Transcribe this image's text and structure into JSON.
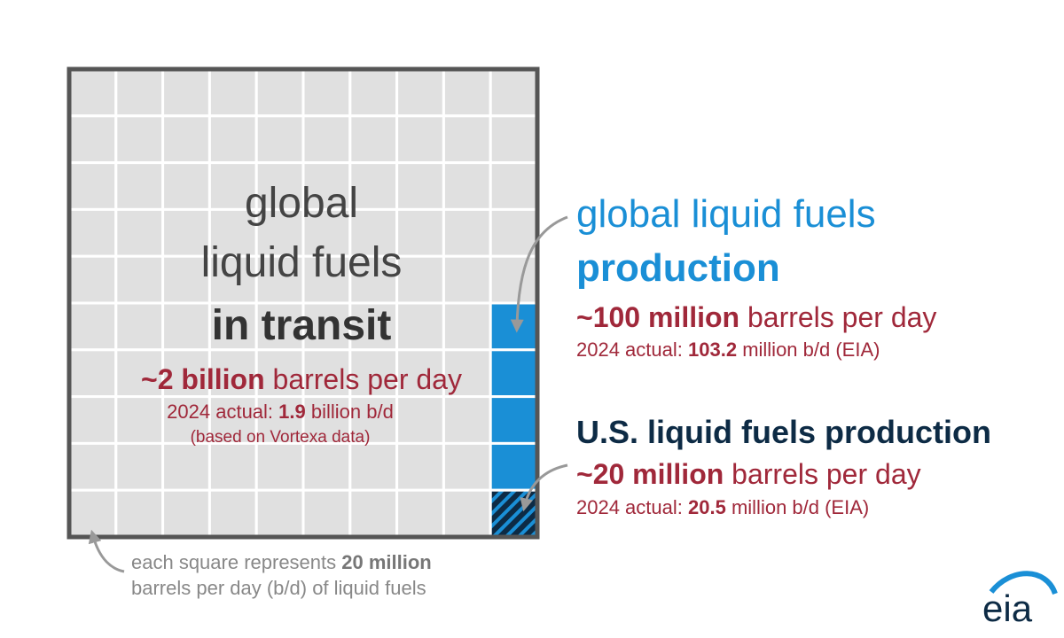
{
  "grid": {
    "label": {
      "line1": "global",
      "line2": "liquid fuels",
      "line3": "in transit"
    },
    "estimate": {
      "bold": "~2 billion",
      "rest": "barrels per day"
    },
    "actual": {
      "prefix": "2024 actual:",
      "bold": "1.9",
      "rest": "billion b/d"
    },
    "source": "(based on Vortexa data)"
  },
  "global_production": {
    "title": {
      "line1": "global liquid fuels",
      "line2": "production"
    },
    "estimate": {
      "bold": "~100 million",
      "rest": "barrels per day"
    },
    "actual": {
      "prefix": "2024 actual:",
      "bold": "103.2",
      "rest": "million b/d (EIA)"
    }
  },
  "us_production": {
    "title": "U.S. liquid fuels production",
    "estimate": {
      "bold": "~20 million",
      "rest": "barrels per day"
    },
    "actual": {
      "prefix": "2024 actual:",
      "bold": "20.5",
      "rest": "million b/d (EIA)"
    }
  },
  "legend": {
    "prefix": "each square represents",
    "bold": "20 million",
    "line2": "barrels per day (b/d) of liquid fuels"
  },
  "logo": "eia"
}
